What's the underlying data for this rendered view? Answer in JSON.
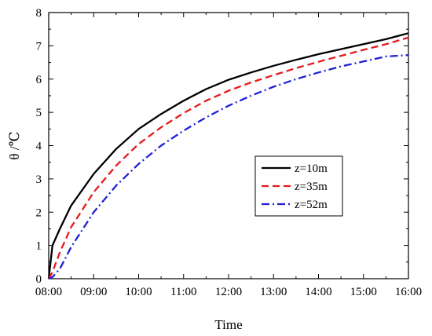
{
  "chart_data": {
    "type": "line",
    "title": "",
    "xlabel": "Time",
    "ylabel": "θ /℃",
    "x_ticks": [
      "08:00",
      "09:00",
      "10:00",
      "11:00",
      "12:00",
      "13:00",
      "14:00",
      "15:00",
      "16:00"
    ],
    "y_ticks": [
      "0",
      "1",
      "2",
      "3",
      "4",
      "5",
      "6",
      "7",
      "8"
    ],
    "xlim": [
      "08:00",
      "16:00"
    ],
    "ylim": [
      0,
      8
    ],
    "grid": false,
    "legend_position": "center-right",
    "series": [
      {
        "name": "z=10m",
        "color": "#000000",
        "dash": "solid",
        "x": [
          "08:00",
          "08:05",
          "08:15",
          "08:30",
          "09:00",
          "09:30",
          "10:00",
          "10:30",
          "11:00",
          "11:30",
          "12:00",
          "12:30",
          "13:00",
          "13:30",
          "14:00",
          "14:30",
          "15:00",
          "15:30",
          "16:00"
        ],
        "y": [
          0,
          1.0,
          1.5,
          2.2,
          3.15,
          3.9,
          4.5,
          4.95,
          5.35,
          5.7,
          5.98,
          6.2,
          6.4,
          6.58,
          6.75,
          6.9,
          7.05,
          7.2,
          7.38
        ]
      },
      {
        "name": "z=35m",
        "color": "#e31a1c",
        "dash": "dashed",
        "x": [
          "08:00",
          "08:05",
          "08:15",
          "08:30",
          "09:00",
          "09:30",
          "10:00",
          "10:30",
          "11:00",
          "11:30",
          "12:00",
          "12:30",
          "13:00",
          "13:30",
          "14:00",
          "14:30",
          "15:00",
          "15:30",
          "16:00"
        ],
        "y": [
          0,
          0.2,
          0.8,
          1.55,
          2.6,
          3.4,
          4.05,
          4.55,
          4.98,
          5.35,
          5.65,
          5.9,
          6.12,
          6.33,
          6.52,
          6.7,
          6.88,
          7.05,
          7.25
        ]
      },
      {
        "name": "z=52m",
        "color": "#1f1fd6",
        "dash": "dashdot",
        "x": [
          "08:00",
          "08:05",
          "08:15",
          "08:30",
          "09:00",
          "09:30",
          "10:00",
          "10:30",
          "11:00",
          "11:30",
          "12:00",
          "12:30",
          "13:00",
          "13:30",
          "14:00",
          "14:30",
          "15:00",
          "15:30",
          "16:00"
        ],
        "y": [
          0,
          0.05,
          0.3,
          0.95,
          2.0,
          2.8,
          3.45,
          4.0,
          4.45,
          4.85,
          5.2,
          5.5,
          5.77,
          6.0,
          6.2,
          6.38,
          6.53,
          6.68,
          6.72
        ]
      }
    ]
  }
}
